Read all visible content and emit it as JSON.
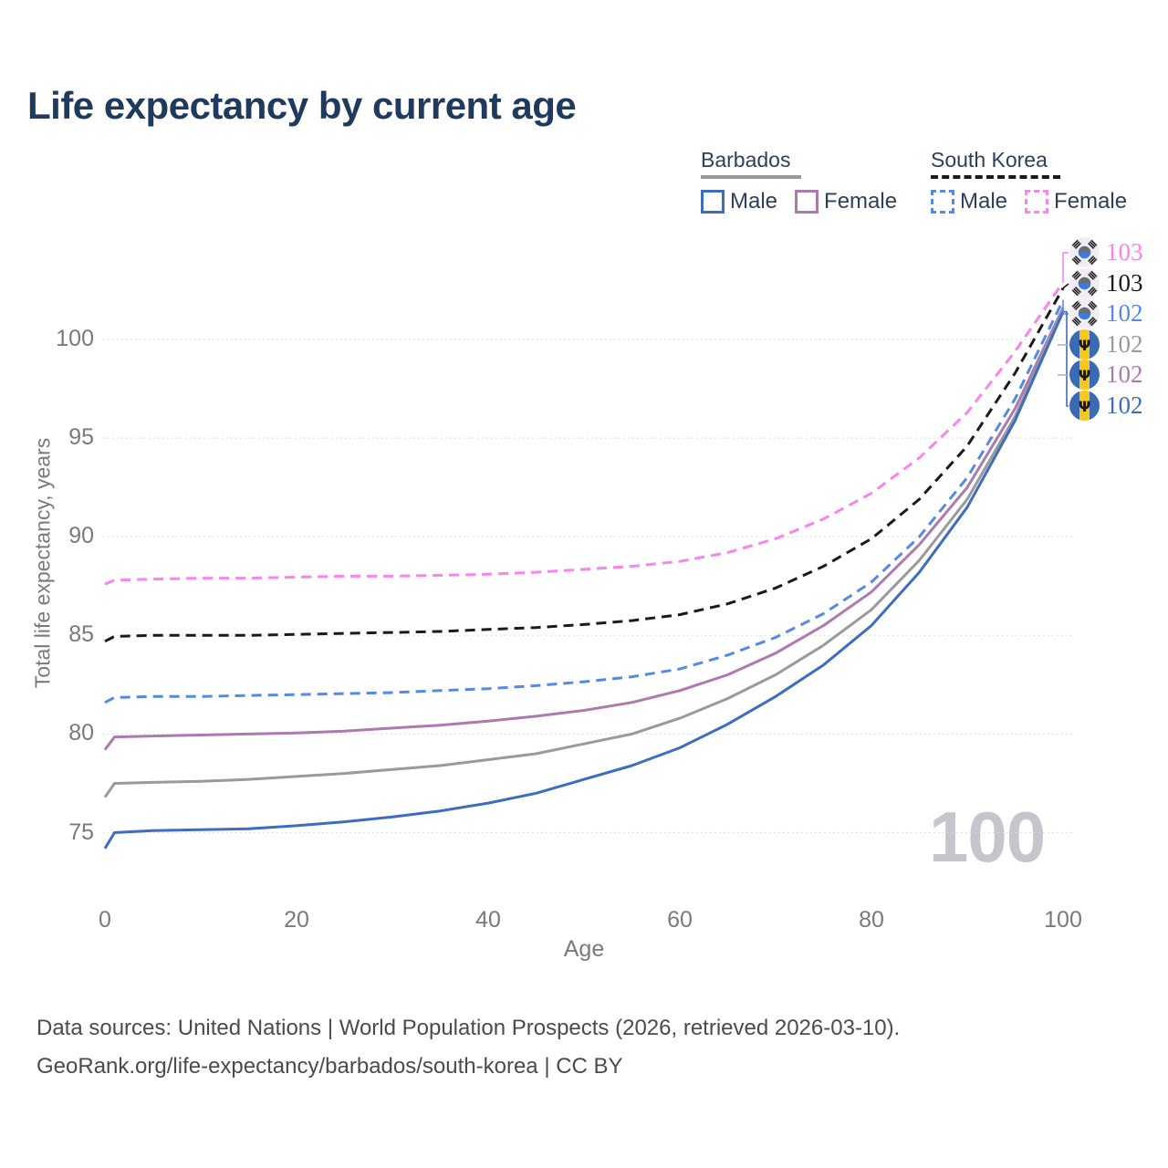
{
  "title": "Life expectancy by current age",
  "watermark": "100",
  "colors": {
    "title_text": "#1f3a5c",
    "axis_text": "#7a7a7a",
    "grid": "#dcdcdc",
    "watermark": "#c5c5cb",
    "footer_text": "#4b4b4b",
    "legend_text": "#2e3f5a"
  },
  "legend": {
    "groups": [
      {
        "label": "Barbados",
        "line_style": "solid",
        "line_color": "#9a9a9a",
        "items": [
          {
            "label": "Male",
            "color": "#3d6cc3",
            "dash": "solid"
          },
          {
            "label": "Female",
            "color": "#ad7ab0",
            "dash": "solid"
          }
        ]
      },
      {
        "label": "South Korea",
        "line_style": "dashed",
        "line_color": "#1a1a1a",
        "items": [
          {
            "label": "Male",
            "color": "#5589e8",
            "dash": "dashed"
          },
          {
            "label": "Female",
            "color": "#f884ec",
            "dash": "dashed"
          }
        ]
      }
    ]
  },
  "footer": {
    "line1": "Data sources: United Nations | World Population Prospects (2026, retrieved 2026-03-10).",
    "line2": "GeoRank.org/life-expectancy/barbados/south-korea | CC BY"
  },
  "chart_data": {
    "type": "line",
    "title": "Life expectancy by current age",
    "xlabel": "Age",
    "ylabel": "Total life expectancy, years",
    "xlim": [
      0,
      100
    ],
    "ylim": [
      73.5,
      104
    ],
    "xticks": [
      0,
      20,
      40,
      60,
      80,
      100
    ],
    "yticks": [
      75,
      80,
      85,
      90,
      95,
      100
    ],
    "grid": true,
    "grid_style": "dotted",
    "legend_position": "top-right",
    "hovered_age": "100",
    "series": [
      {
        "name": "South Korea Female",
        "country": "South Korea",
        "sex": "Female",
        "color": "#f884ec",
        "dash": "dashed",
        "end_label": "103",
        "flag": "kr",
        "points": [
          [
            0,
            87.6
          ],
          [
            1,
            87.8
          ],
          [
            5,
            87.85
          ],
          [
            10,
            87.9
          ],
          [
            15,
            87.9
          ],
          [
            20,
            87.95
          ],
          [
            25,
            88.0
          ],
          [
            30,
            88.0
          ],
          [
            35,
            88.05
          ],
          [
            40,
            88.1
          ],
          [
            45,
            88.2
          ],
          [
            50,
            88.35
          ],
          [
            55,
            88.5
          ],
          [
            60,
            88.75
          ],
          [
            65,
            89.2
          ],
          [
            70,
            89.9
          ],
          [
            75,
            90.9
          ],
          [
            80,
            92.2
          ],
          [
            85,
            94.0
          ],
          [
            90,
            96.3
          ],
          [
            95,
            99.4
          ],
          [
            100,
            102.9
          ]
        ]
      },
      {
        "name": "South Korea Both sexes",
        "country": "South Korea",
        "sex": "Both",
        "color": "#1a1a1a",
        "dash": "dashed",
        "end_label": "103",
        "flag": "kr",
        "points": [
          [
            0,
            84.7
          ],
          [
            1,
            84.95
          ],
          [
            5,
            85.0
          ],
          [
            10,
            85.0
          ],
          [
            15,
            85.0
          ],
          [
            20,
            85.05
          ],
          [
            25,
            85.1
          ],
          [
            30,
            85.15
          ],
          [
            35,
            85.2
          ],
          [
            40,
            85.3
          ],
          [
            45,
            85.4
          ],
          [
            50,
            85.55
          ],
          [
            55,
            85.75
          ],
          [
            60,
            86.05
          ],
          [
            65,
            86.6
          ],
          [
            70,
            87.4
          ],
          [
            75,
            88.5
          ],
          [
            80,
            89.9
          ],
          [
            85,
            91.9
          ],
          [
            90,
            94.6
          ],
          [
            95,
            98.3
          ],
          [
            100,
            102.6
          ]
        ]
      },
      {
        "name": "South Korea Male",
        "country": "South Korea",
        "sex": "Male",
        "color": "#5589e8",
        "dash": "dashed",
        "end_label": "102",
        "flag": "kr",
        "points": [
          [
            0,
            81.6
          ],
          [
            1,
            81.85
          ],
          [
            5,
            81.9
          ],
          [
            10,
            81.9
          ],
          [
            15,
            81.95
          ],
          [
            20,
            82.0
          ],
          [
            25,
            82.05
          ],
          [
            30,
            82.1
          ],
          [
            35,
            82.2
          ],
          [
            40,
            82.3
          ],
          [
            45,
            82.45
          ],
          [
            50,
            82.65
          ],
          [
            55,
            82.9
          ],
          [
            60,
            83.3
          ],
          [
            65,
            84.0
          ],
          [
            70,
            84.9
          ],
          [
            75,
            86.1
          ],
          [
            80,
            87.7
          ],
          [
            85,
            90.0
          ],
          [
            90,
            93.0
          ],
          [
            95,
            97.0
          ],
          [
            100,
            102.0
          ]
        ]
      },
      {
        "name": "Barbados Female",
        "country": "Barbados",
        "sex": "Female",
        "color": "#ad7ab0",
        "dash": "solid",
        "end_label": "102",
        "flag": "bb",
        "points": [
          [
            0,
            79.2
          ],
          [
            1,
            79.85
          ],
          [
            5,
            79.9
          ],
          [
            10,
            79.95
          ],
          [
            15,
            80.0
          ],
          [
            20,
            80.05
          ],
          [
            25,
            80.15
          ],
          [
            30,
            80.3
          ],
          [
            35,
            80.45
          ],
          [
            40,
            80.65
          ],
          [
            45,
            80.9
          ],
          [
            50,
            81.2
          ],
          [
            55,
            81.6
          ],
          [
            60,
            82.2
          ],
          [
            65,
            83.0
          ],
          [
            70,
            84.1
          ],
          [
            75,
            85.5
          ],
          [
            80,
            87.2
          ],
          [
            85,
            89.6
          ],
          [
            90,
            92.5
          ],
          [
            95,
            96.5
          ],
          [
            100,
            101.6
          ]
        ]
      },
      {
        "name": "Barbados Both sexes",
        "country": "Barbados",
        "sex": "Both",
        "color": "#9a9a9a",
        "dash": "solid",
        "end_label": "102",
        "flag": "bb",
        "points": [
          [
            0,
            76.8
          ],
          [
            1,
            77.5
          ],
          [
            5,
            77.55
          ],
          [
            10,
            77.6
          ],
          [
            15,
            77.7
          ],
          [
            20,
            77.85
          ],
          [
            25,
            78.0
          ],
          [
            30,
            78.2
          ],
          [
            35,
            78.4
          ],
          [
            40,
            78.7
          ],
          [
            45,
            79.0
          ],
          [
            50,
            79.5
          ],
          [
            55,
            80.0
          ],
          [
            60,
            80.8
          ],
          [
            65,
            81.8
          ],
          [
            70,
            83.0
          ],
          [
            75,
            84.5
          ],
          [
            80,
            86.3
          ],
          [
            85,
            88.8
          ],
          [
            90,
            91.9
          ],
          [
            95,
            96.1
          ],
          [
            100,
            101.5
          ]
        ]
      },
      {
        "name": "Barbados Male",
        "country": "Barbados",
        "sex": "Male",
        "color": "#3d6cc3",
        "dash": "solid",
        "end_label": "102",
        "flag": "bb",
        "points": [
          [
            0,
            74.2
          ],
          [
            1,
            75.0
          ],
          [
            5,
            75.1
          ],
          [
            10,
            75.15
          ],
          [
            15,
            75.2
          ],
          [
            20,
            75.35
          ],
          [
            25,
            75.55
          ],
          [
            30,
            75.8
          ],
          [
            35,
            76.1
          ],
          [
            40,
            76.5
          ],
          [
            45,
            77.0
          ],
          [
            50,
            77.7
          ],
          [
            55,
            78.4
          ],
          [
            60,
            79.3
          ],
          [
            65,
            80.5
          ],
          [
            70,
            81.9
          ],
          [
            75,
            83.5
          ],
          [
            80,
            85.5
          ],
          [
            85,
            88.2
          ],
          [
            90,
            91.5
          ],
          [
            95,
            95.9
          ],
          [
            100,
            101.4
          ]
        ]
      }
    ],
    "end_value_labels": [
      {
        "flag": "kr",
        "value": "103",
        "color": "#f884ec",
        "series": "South Korea Female"
      },
      {
        "flag": "kr",
        "value": "103",
        "color": "#1a1a1a",
        "series": "South Korea Both sexes"
      },
      {
        "flag": "kr",
        "value": "102",
        "color": "#5589e8",
        "series": "South Korea Male"
      },
      {
        "flag": "bb",
        "value": "102",
        "color": "#9a9a9a",
        "series": "Barbados Both sexes"
      },
      {
        "flag": "bb",
        "value": "102",
        "color": "#ad7ab0",
        "series": "Barbados Female"
      },
      {
        "flag": "bb",
        "value": "102",
        "color": "#3d6cc3",
        "series": "Barbados Male"
      }
    ]
  }
}
